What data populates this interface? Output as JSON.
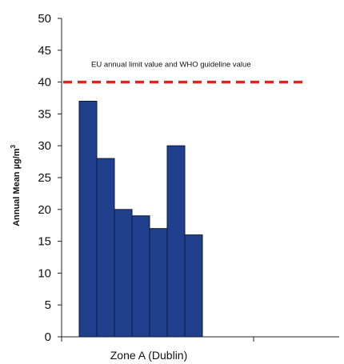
{
  "chart_data": {
    "type": "bar",
    "ylabel": "Annual Mean  µg/m",
    "ylabel_sup": "3",
    "xlabel": "Zone A (Dublin)",
    "ylim": [
      0,
      50
    ],
    "yticks": [
      0,
      5,
      10,
      15,
      20,
      25,
      30,
      35,
      40,
      45,
      50
    ],
    "values": [
      37,
      28,
      20,
      19,
      17,
      30,
      16
    ],
    "bar_color": "#203f8c",
    "grid": false,
    "reference_line": {
      "value": 40,
      "label": "EU annual limit value and WHO guideline value",
      "color": "#e32219",
      "style": "dashed"
    }
  }
}
